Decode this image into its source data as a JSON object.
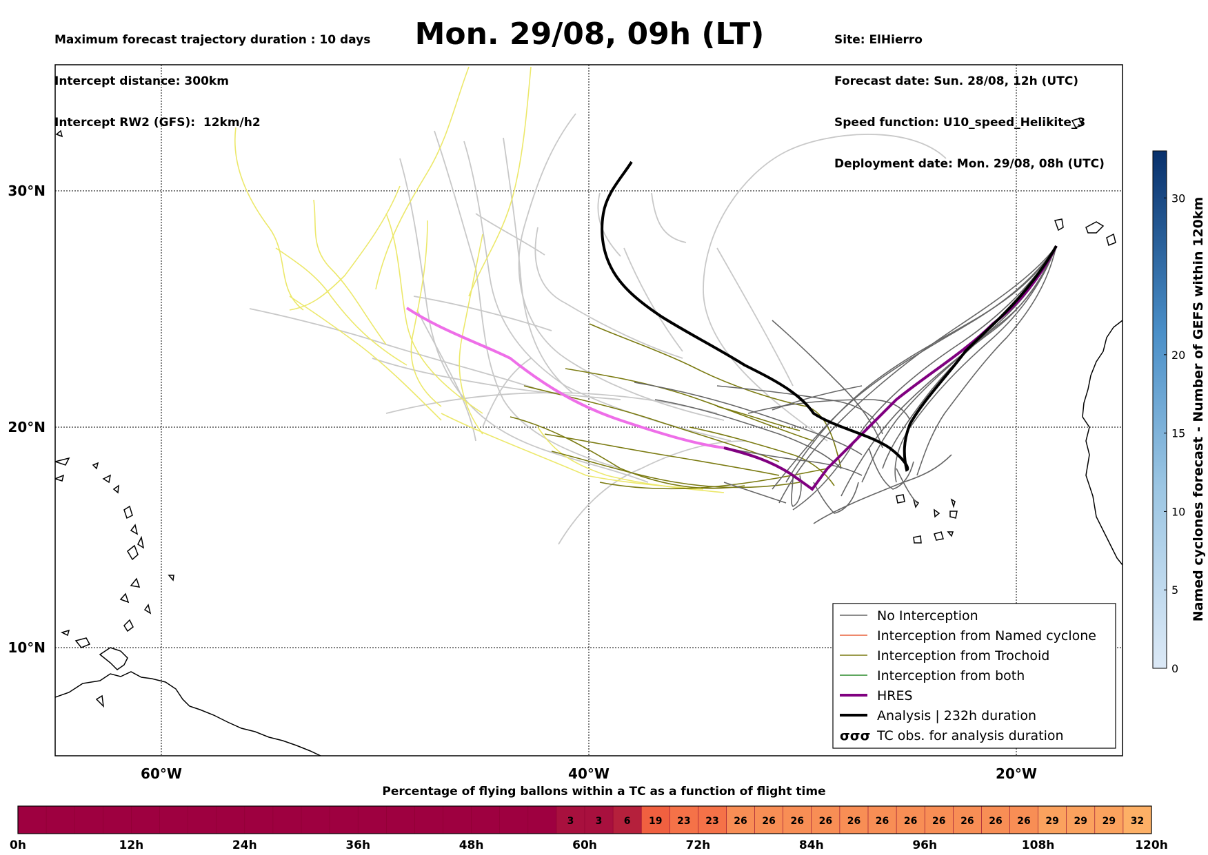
{
  "header": {
    "left_lines": [
      "Maximum forecast trajectory duration : 10 days",
      "Intercept distance: 300km",
      "Intercept RW2 (GFS):  12km/h2"
    ],
    "title": "Mon. 29/08, 09h (LT)",
    "right_lines": [
      "Site: ElHierro",
      "Forecast date: Sun. 28/08, 12h (UTC)",
      "Speed function: U10_speed_Helikite_3",
      "Deployment date: Mon. 29/08, 08h (UTC)"
    ]
  },
  "map": {
    "lon_ticks": [
      "60°W",
      "40°W",
      "20°W"
    ],
    "lat_ticks": [
      "30°N",
      "20°N",
      "10°N"
    ],
    "colors": {
      "no_interception": "#666666",
      "named": "#e8603c",
      "trochoid": "#7a7a10",
      "both": "#2a8a2a",
      "hres": "#800080",
      "hres_light": "#ee6ee8",
      "analysis": "#000000",
      "yellow": "#ece86a",
      "grey_light": "#c8c8c8"
    }
  },
  "legend": {
    "items": [
      {
        "label": "No Interception",
        "color": "#666666",
        "style": "thin"
      },
      {
        "label": "Interception from Named cyclone",
        "color": "#e8603c",
        "style": "thin"
      },
      {
        "label": "Interception from Trochoid",
        "color": "#7a7a10",
        "style": "thin"
      },
      {
        "label": "Interception from both",
        "color": "#2a8a2a",
        "style": "thin"
      },
      {
        "label": "HRES",
        "color": "#800080",
        "style": "thick"
      },
      {
        "label": "Analysis | 232h duration",
        "color": "#000000",
        "style": "thick"
      },
      {
        "label": "TC obs. for analysis duration",
        "color": "#000000",
        "style": "symbol"
      }
    ],
    "symbol_glyph": "σσσ"
  },
  "colorbar": {
    "label": "Named cyclones forecast - Number of GEFS within 120km",
    "ticks": [
      "0",
      "5",
      "10",
      "15",
      "20",
      "30"
    ]
  },
  "strip": {
    "title": "Percentage of flying ballons within a TC as a function of flight time",
    "ticks": [
      "0h",
      "12h",
      "24h",
      "36h",
      "48h",
      "60h",
      "72h",
      "84h",
      "96h",
      "108h",
      "120h"
    ],
    "values": [
      "3",
      "3",
      "6",
      "19",
      "23",
      "23",
      "26",
      "26",
      "26",
      "26",
      "26",
      "26",
      "26",
      "26",
      "26",
      "26",
      "26",
      "29",
      "29",
      "29",
      "32"
    ]
  }
}
